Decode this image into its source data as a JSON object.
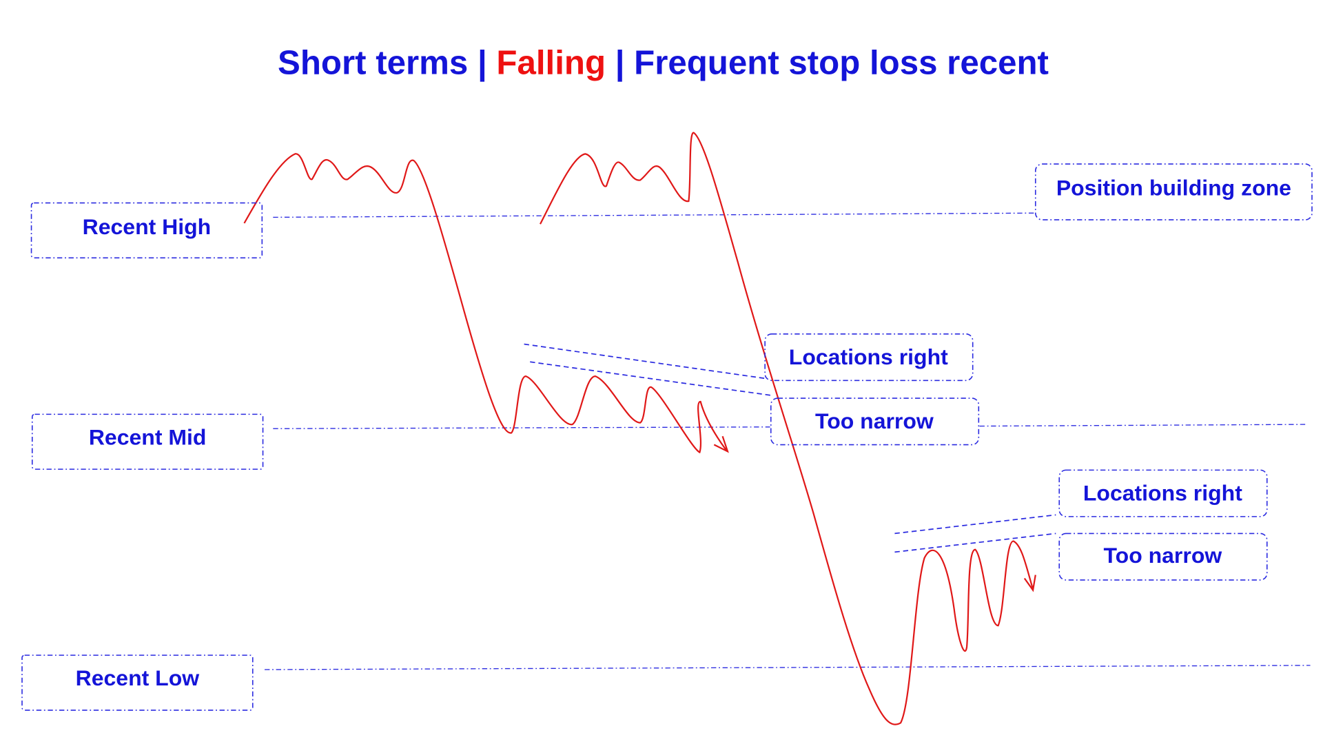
{
  "title": {
    "parts": [
      "Short terms | ",
      "Falling",
      " | Frequent stop loss recent"
    ]
  },
  "levels": [
    "Recent High",
    "Recent Mid",
    "Recent Low"
  ],
  "zone": "Position building zone",
  "callouts": [
    {
      "top": "Locations right",
      "bottom": "Too narrow"
    },
    {
      "top": "Locations right",
      "bottom": "Too narrow"
    }
  ]
}
